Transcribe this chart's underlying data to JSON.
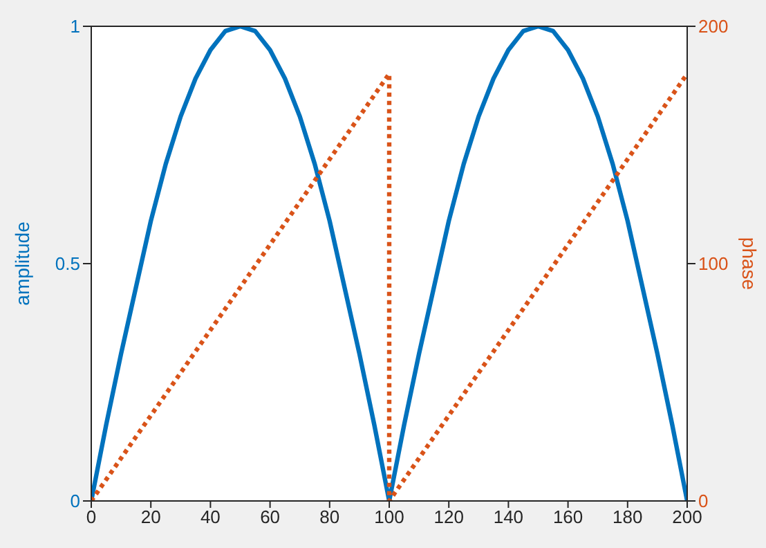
{
  "chart_data": {
    "type": "line",
    "ylabel": "amplitude",
    "y2label": "phase",
    "xlim": [
      0,
      200
    ],
    "xticks": [
      0,
      20,
      40,
      60,
      80,
      100,
      120,
      140,
      160,
      180,
      200
    ],
    "ylim": [
      0,
      1
    ],
    "yticks": [
      0,
      0.5,
      1
    ],
    "y2lim": [
      0,
      200
    ],
    "y2ticks": [
      0,
      100,
      200
    ],
    "grid": false,
    "marker": "none",
    "series": [
      {
        "color": "#0072bd",
        "line_style": "solid",
        "x": [
          0,
          5,
          10,
          15,
          20,
          25,
          30,
          35,
          40,
          45,
          50,
          55,
          60,
          65,
          70,
          75,
          80,
          85,
          90,
          95,
          100,
          105,
          110,
          115,
          120,
          125,
          130,
          135,
          140,
          145,
          150,
          155,
          160,
          165,
          170,
          175,
          180,
          185,
          190,
          195,
          200
        ],
        "values": [
          0,
          0.16,
          0.31,
          0.45,
          0.59,
          0.71,
          0.81,
          0.89,
          0.95,
          0.99,
          1,
          0.99,
          0.95,
          0.89,
          0.81,
          0.71,
          0.59,
          0.45,
          0.31,
          0.16,
          0,
          0.16,
          0.31,
          0.45,
          0.59,
          0.71,
          0.81,
          0.89,
          0.95,
          0.99,
          1,
          0.99,
          0.95,
          0.89,
          0.81,
          0.71,
          0.59,
          0.45,
          0.31,
          0.16,
          0
        ]
      },
      {
        "color": "#d95319",
        "line_style": "dotted",
        "axis": "y2",
        "x": [
          0,
          100,
          100,
          200
        ],
        "values": [
          0,
          180,
          0,
          180
        ]
      }
    ]
  }
}
